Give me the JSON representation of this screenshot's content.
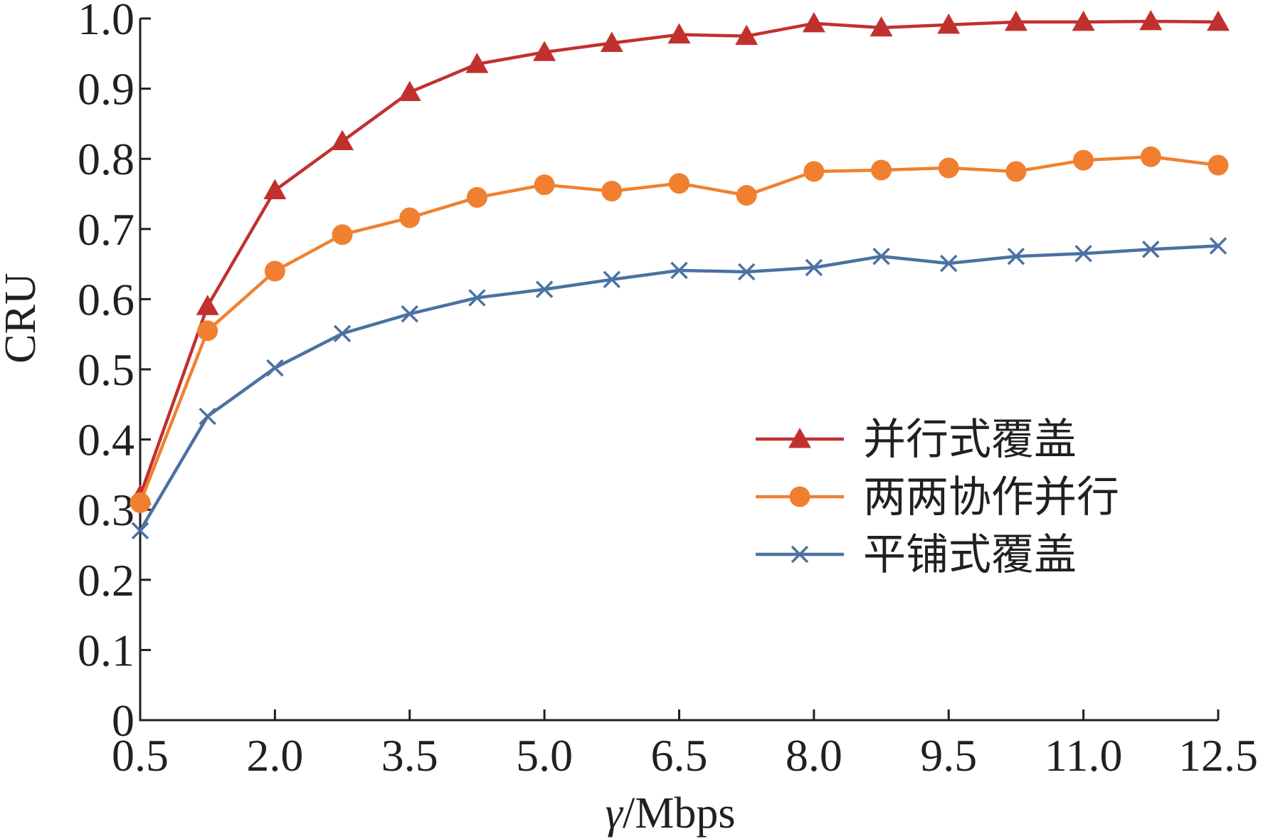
{
  "chart_data": {
    "type": "line",
    "title": "",
    "xlabel_var": "γ",
    "xlabel_unit": "/Mbps",
    "ylabel": "CRU",
    "xlim": [
      0.5,
      12.5
    ],
    "ylim": [
      0,
      1.0
    ],
    "x_ticks": [
      0.5,
      2.0,
      3.5,
      5.0,
      6.5,
      8.0,
      9.5,
      11.0,
      12.5
    ],
    "x_tick_labels": [
      "0.5",
      "2.0",
      "3.5",
      "5.0",
      "6.5",
      "8.0",
      "9.5",
      "11.0",
      "12.5"
    ],
    "y_ticks": [
      0,
      0.1,
      0.2,
      0.3,
      0.4,
      0.5,
      0.6,
      0.7,
      0.8,
      0.9,
      1.0
    ],
    "y_tick_labels": [
      "0",
      "0.1",
      "0.2",
      "0.3",
      "0.4",
      "0.5",
      "0.6",
      "0.7",
      "0.8",
      "0.9",
      "1.0"
    ],
    "grid": false,
    "legend_position": "center-right",
    "x": [
      0.5,
      1.25,
      2.0,
      2.75,
      3.5,
      4.25,
      5.0,
      5.75,
      6.5,
      7.25,
      8.0,
      8.75,
      9.5,
      10.25,
      11.0,
      11.75,
      12.5
    ],
    "series": [
      {
        "name": "并行式覆盖",
        "marker": "triangle",
        "color": "#c0312e",
        "values": [
          0.32,
          0.59,
          0.755,
          0.825,
          0.895,
          0.935,
          0.952,
          0.965,
          0.977,
          0.975,
          0.993,
          0.987,
          0.991,
          0.995,
          0.995,
          0.996,
          0.995
        ]
      },
      {
        "name": "两两协作并行",
        "marker": "circle",
        "color": "#f08030",
        "values": [
          0.31,
          0.555,
          0.64,
          0.692,
          0.716,
          0.745,
          0.763,
          0.754,
          0.765,
          0.748,
          0.782,
          0.784,
          0.787,
          0.782,
          0.798,
          0.803,
          0.791
        ]
      },
      {
        "name": "平铺式覆盖",
        "marker": "x",
        "color": "#4a72a2",
        "values": [
          0.27,
          0.433,
          0.502,
          0.551,
          0.579,
          0.602,
          0.614,
          0.628,
          0.641,
          0.639,
          0.645,
          0.661,
          0.651,
          0.661,
          0.665,
          0.671,
          0.676
        ]
      }
    ]
  }
}
